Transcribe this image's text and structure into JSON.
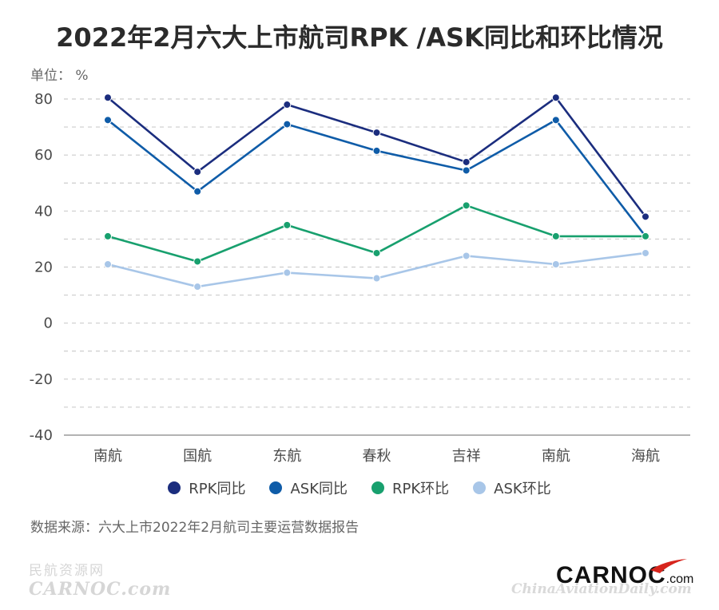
{
  "title": "2022年2月六大上市航司RPK /ASK同比和环比情况",
  "unit_label": "单位： %",
  "source_text": "数据来源：六大上市2022年2月航司主要运营数据报告",
  "watermark": {
    "left_cn": "民航资源网",
    "left_en": "CARNOC.com",
    "logo_main": "CARNOC",
    "logo_suffix": ".com",
    "right": "ChinaAviationDaily.com"
  },
  "colors": {
    "rpk_yoy": "#1b2d7e",
    "ask_yoy": "#0f5ca8",
    "rpk_mom": "#18a06e",
    "ask_mom": "#a8c6e8",
    "grid": "#cccccc",
    "logo_red": "#d7251d"
  },
  "chart_data": {
    "type": "line",
    "categories": [
      "南航",
      "国航",
      "东航",
      "春秋",
      "吉祥",
      "南航",
      "海航"
    ],
    "ylim": [
      -40,
      80
    ],
    "yticks": [
      -40,
      -20,
      0,
      20,
      40,
      60,
      80
    ],
    "ytick_labels": [
      "-40",
      "-20",
      "0",
      "20",
      "40",
      "60",
      "80"
    ],
    "grid": "horizontal dashed",
    "legend_position": "bottom",
    "series": [
      {
        "name": "RPK同比",
        "color": "#1b2d7e",
        "values": [
          80.5,
          54,
          78,
          68,
          57.5,
          80.5,
          38
        ]
      },
      {
        "name": "ASK同比",
        "color": "#0f5ca8",
        "values": [
          72.5,
          47,
          71,
          61.5,
          54.5,
          72.5,
          31
        ]
      },
      {
        "name": "RPK环比",
        "color": "#18a06e",
        "values": [
          31,
          22,
          35,
          25,
          42,
          31,
          31
        ]
      },
      {
        "name": "ASK环比",
        "color": "#a8c6e8",
        "values": [
          21,
          13,
          18,
          16,
          24,
          21,
          25
        ]
      }
    ]
  }
}
